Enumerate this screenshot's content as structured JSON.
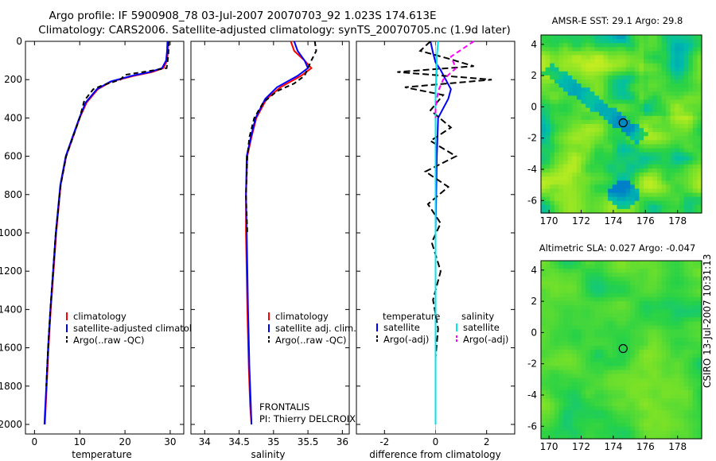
{
  "title": {
    "line1": "Argo profile: IF 5900908_78 03-Jul-2007 20070703_92 1.023S 174.613E",
    "line2": "Climatology: CARS2006. Satellite-adjusted climatology: synTS_20070705.nc (1.9d later)"
  },
  "footer": {
    "stamp": "CSIRO 13-Jul-2007 10:31:13"
  },
  "colors": {
    "climatology": "#ff0000",
    "satellite": "#0000ff",
    "argo": "#000000",
    "sal_satellite": "#00e5ee",
    "sal_argo": "#ff00ff"
  },
  "chart_data": [
    {
      "id": "temperature",
      "type": "line",
      "xlabel": "temperature",
      "xlim": [
        -2,
        33
      ],
      "xticks": [
        0,
        10,
        20,
        30
      ],
      "xtick_labels": [
        "0",
        "10",
        "20",
        "30"
      ],
      "ylim": [
        0,
        2050
      ],
      "yticks": [
        0,
        200,
        400,
        600,
        800,
        1000,
        1200,
        1400,
        1600,
        1800,
        2000
      ],
      "ytick_labels": [
        "0",
        "200",
        "400",
        "600",
        "800",
        "1000",
        "1200",
        "1400",
        "1600",
        "1800",
        "2000"
      ],
      "series": [
        {
          "name": "climatology",
          "color": "#ff0000",
          "dash": "",
          "x": [
            29.6,
            29.5,
            29.3,
            28.5,
            26,
            22,
            17,
            14,
            11.5,
            10,
            8.5,
            7,
            5.8,
            4.8,
            4.2,
            3.6,
            3.1,
            2.7,
            2.4,
            2.3
          ],
          "y": [
            0,
            50,
            100,
            140,
            160,
            180,
            210,
            250,
            320,
            400,
            500,
            600,
            750,
            1000,
            1200,
            1400,
            1600,
            1800,
            1950,
            2000
          ]
        },
        {
          "name": "satellite-adjusted climatology",
          "color": "#0000ff",
          "dash": "",
          "x": [
            29.4,
            29.3,
            29.1,
            28.2,
            25.5,
            21.5,
            16.8,
            13.8,
            11.3,
            9.9,
            8.4,
            6.9,
            5.7,
            4.7,
            4.1,
            3.5,
            3.0,
            2.6,
            2.3,
            2.2
          ],
          "y": [
            0,
            50,
            100,
            140,
            160,
            180,
            210,
            250,
            320,
            400,
            500,
            600,
            750,
            1000,
            1200,
            1400,
            1600,
            1800,
            1950,
            2000
          ]
        },
        {
          "name": "Argo(..raw -QC)",
          "color": "#000000",
          "dash": "6,4",
          "x": [
            29.7,
            29.6,
            29.4,
            29.2,
            24,
            20,
            19,
            15,
            13,
            11,
            10,
            8.5,
            7,
            5.8,
            4.7,
            4.1,
            3.5,
            3.0,
            2.6
          ],
          "y": [
            0,
            60,
            110,
            140,
            160,
            175,
            200,
            230,
            250,
            310,
            400,
            500,
            600,
            750,
            1000,
            1200,
            1400,
            1600,
            1800
          ]
        }
      ],
      "legend": [
        "climatology",
        "satellite-adjusted climatology",
        "Argo(..raw -QC)"
      ]
    },
    {
      "id": "salinity",
      "type": "line",
      "xlabel": "salinity",
      "xlim": [
        33.8,
        36.1
      ],
      "xticks": [
        34,
        34.5,
        35,
        35.5,
        36
      ],
      "xtick_labels": [
        "34",
        "34.5",
        "35",
        "35.5",
        "36"
      ],
      "ylim": [
        0,
        2050
      ],
      "series": [
        {
          "name": "climatology",
          "color": "#ff0000",
          "dash": "",
          "x": [
            35.25,
            35.3,
            35.45,
            35.55,
            35.4,
            35.1,
            34.9,
            34.75,
            34.68,
            34.62,
            34.6,
            34.6,
            34.62,
            34.64,
            34.66,
            34.68
          ],
          "y": [
            0,
            50,
            100,
            140,
            180,
            240,
            300,
            400,
            500,
            600,
            800,
            1000,
            1400,
            1700,
            1900,
            2000
          ]
        },
        {
          "name": "satellite adj. clim.",
          "color": "#0000ff",
          "dash": "",
          "x": [
            35.3,
            35.35,
            35.45,
            35.5,
            35.35,
            35.05,
            34.88,
            34.74,
            34.67,
            34.61,
            34.6,
            34.61,
            34.63,
            34.65,
            34.67,
            34.68
          ],
          "y": [
            0,
            50,
            100,
            140,
            180,
            240,
            300,
            400,
            500,
            600,
            800,
            1000,
            1400,
            1700,
            1900,
            2000
          ]
        },
        {
          "name": "Argo(..raw -QC)",
          "color": "#000000",
          "dash": "6,4",
          "x": [
            35.6,
            35.62,
            35.55,
            35.5,
            35.45,
            35.3,
            35.05,
            34.85,
            34.72,
            34.65,
            34.62,
            34.6,
            34.62
          ],
          "y": [
            0,
            50,
            100,
            140,
            180,
            220,
            260,
            320,
            400,
            500,
            600,
            800,
            1000
          ]
        }
      ],
      "legend": [
        "climatology",
        "satellite adj. clim.",
        "Argo(..raw -QC)"
      ],
      "annotation": [
        "FRONTALIS",
        "PI: Thierry DELCROIX"
      ]
    },
    {
      "id": "difference",
      "type": "line",
      "xlabel": "difference from climatology",
      "xlim": [
        -3.1,
        3.1
      ],
      "xticks": [
        -2,
        0,
        2
      ],
      "xtick_labels": [
        "-2",
        "0",
        "2"
      ],
      "ylim": [
        0,
        2050
      ],
      "series": [
        {
          "name": "temperature satellite",
          "color": "#0000ff",
          "dash": "",
          "x": [
            -0.2,
            -0.1,
            0.0,
            0.2,
            0.4,
            0.6,
            0.5,
            0.3,
            0.1,
            0.05,
            0.0,
            0.0
          ],
          "y": [
            0,
            60,
            110,
            150,
            200,
            250,
            300,
            350,
            400,
            600,
            1000,
            2000
          ]
        },
        {
          "name": "temperature Argo(-adj)",
          "color": "#000000",
          "dash": "8,4",
          "x": [
            -0.2,
            -0.6,
            0.5,
            1.5,
            -1.5,
            2.2,
            -1.2,
            0.3,
            -0.2,
            0.6,
            -0.2,
            0.8,
            -0.4,
            0.5,
            -0.3,
            0.2,
            -0.15,
            0.2,
            -0.1,
            0.1,
            0.0
          ],
          "y": [
            0,
            50,
            90,
            130,
            160,
            200,
            240,
            280,
            360,
            450,
            520,
            600,
            680,
            760,
            850,
            950,
            1050,
            1200,
            1350,
            1500,
            1650
          ]
        },
        {
          "name": "salinity satellite",
          "color": "#00e5ee",
          "dash": "",
          "x": [
            0.1,
            0.05,
            0.05,
            0.0,
            0.0,
            0.0,
            0.0,
            0.0
          ],
          "y": [
            0,
            80,
            150,
            250,
            400,
            800,
            1400,
            2000
          ]
        },
        {
          "name": "salinity Argo(-adj)",
          "color": "#ff00ff",
          "dash": "6,4",
          "x": [
            1.5,
            0.6,
            0.8,
            0.3,
            0.1,
            0.0,
            0.0
          ],
          "y": [
            0,
            80,
            140,
            200,
            260,
            350,
            400
          ]
        }
      ],
      "legend_titles": [
        "temperature",
        "salinity"
      ],
      "legend": [
        "satellite",
        "Argo(-adj)",
        "satellite",
        "Argo(-adj)"
      ]
    },
    {
      "id": "sst_map",
      "type": "heatmap",
      "title": "AMSR-E SST: 29.1 Argo: 29.8",
      "xticks": [
        170,
        172,
        174,
        176,
        178
      ],
      "yticks": [
        4,
        2,
        0,
        -2,
        -4,
        -6
      ],
      "xlim": [
        169.5,
        179.5
      ],
      "ylim": [
        -6.8,
        4.6
      ],
      "argo_position": [
        174.613,
        -1.023
      ]
    },
    {
      "id": "sla_map",
      "type": "heatmap",
      "title": "Altimetric SLA: 0.027 Argo: -0.047",
      "xticks": [
        170,
        172,
        174,
        176,
        178
      ],
      "yticks": [
        4,
        2,
        0,
        -2,
        -4,
        -6
      ],
      "xlim": [
        169.5,
        179.5
      ],
      "ylim": [
        -6.8,
        4.6
      ],
      "argo_position": [
        174.613,
        -1.023
      ]
    }
  ]
}
